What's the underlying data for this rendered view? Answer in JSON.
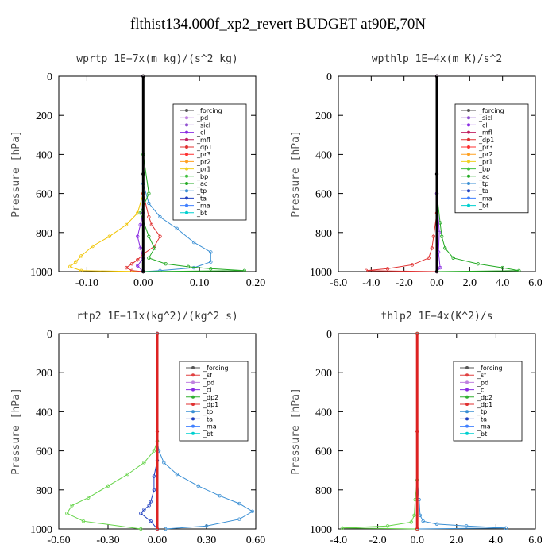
{
  "figure_title": "flthist134.000f_xp2_revert  BUDGET at90E,70N",
  "chart_data": [
    {
      "type": "line",
      "title": "wprtp  1E−7x(m kg)/(s^2 kg)",
      "ylabel": "Pressure [hPa]",
      "xlim": [
        -0.15,
        0.2
      ],
      "ylim": [
        1000,
        0
      ],
      "x_ticks": [
        "-0.10",
        "0.00",
        "0.10",
        "0.20"
      ],
      "x_tick_values": [
        -0.1,
        0.0,
        0.1,
        0.2
      ],
      "y_ticks": [
        "0",
        "200",
        "400",
        "600",
        "800",
        "1000"
      ],
      "y_tick_values": [
        0,
        200,
        400,
        600,
        800,
        1000
      ],
      "legend": [
        "_forcing",
        "_pd",
        "_sicl",
        "_cl",
        "_mfl",
        "_dp1",
        "_pr3",
        "_pr2",
        "_pr1",
        "_bp",
        "_ac",
        "_tp",
        "_ta",
        "_ma",
        "_bt"
      ],
      "series": [
        {
          "name": "_tp",
          "color": "#3a8fd4",
          "x": [
            0,
            0,
            0.01,
            0.03,
            0.06,
            0.09,
            0.12,
            0.12,
            0.09,
            0.03,
            0
          ],
          "y": [
            0,
            550,
            650,
            720,
            780,
            850,
            900,
            950,
            980,
            995,
            1000
          ]
        },
        {
          "name": "_pr2",
          "color": "#f0c400",
          "x": [
            0,
            0,
            -0.01,
            -0.03,
            -0.06,
            -0.09,
            -0.11,
            -0.12,
            -0.13,
            -0.11,
            0
          ],
          "y": [
            0,
            600,
            700,
            760,
            820,
            870,
            920,
            950,
            975,
            995,
            1000
          ]
        },
        {
          "name": "_dp1",
          "color": "#e03030",
          "x": [
            0,
            0,
            0.01,
            0.015,
            0.03,
            0.02,
            0.0,
            -0.01,
            -0.02,
            -0.03,
            -0.02,
            0
          ],
          "y": [
            0,
            600,
            720,
            760,
            820,
            870,
            910,
            940,
            960,
            980,
            995,
            1000
          ]
        },
        {
          "name": "_ac",
          "color": "#22aa22",
          "x": [
            0,
            0,
            0.01,
            -0.005,
            0.01,
            0.02,
            0.01,
            0.04,
            0.08,
            0.12,
            0.18,
            0
          ],
          "y": [
            0,
            400,
            600,
            700,
            820,
            880,
            930,
            960,
            975,
            985,
            995,
            1000
          ]
        },
        {
          "name": "_cl",
          "color": "#8a2be2",
          "x": [
            0,
            0,
            -0.005,
            -0.01,
            -0.005,
            0.0,
            -0.01,
            0
          ],
          "y": [
            0,
            700,
            760,
            820,
            880,
            930,
            970,
            1000
          ]
        },
        {
          "name": "_forcing",
          "color": "#000000",
          "x": [
            0,
            0,
            0
          ],
          "y": [
            0,
            500,
            1000
          ]
        }
      ]
    },
    {
      "type": "line",
      "title": "wpthlp  1E−4x(m K)/s^2",
      "ylabel": "Pressure [hPa]",
      "xlim": [
        -6.0,
        6.0
      ],
      "ylim": [
        1000,
        0
      ],
      "x_ticks": [
        "-6.0",
        "-4.0",
        "-2.0",
        "0.0",
        "2.0",
        "4.0",
        "6.0"
      ],
      "x_tick_values": [
        -6,
        -4,
        -2,
        0,
        2,
        4,
        6
      ],
      "y_ticks": [
        "0",
        "200",
        "400",
        "600",
        "800",
        "1000"
      ],
      "y_tick_values": [
        0,
        200,
        400,
        600,
        800,
        1000
      ],
      "legend": [
        "_forcing",
        "_sicl",
        "_cl",
        "_mfl",
        "_dp1",
        "_pr3",
        "_pr2",
        "_pr1",
        "_bp",
        "_ac",
        "_tp",
        "_ta",
        "_ma",
        "_bt"
      ],
      "series": [
        {
          "name": "_ac",
          "color": "#22aa22",
          "x": [
            0,
            0,
            0.2,
            0.3,
            0.5,
            1.0,
            2.5,
            4.0,
            5.0,
            0
          ],
          "y": [
            0,
            600,
            750,
            820,
            880,
            930,
            960,
            980,
            995,
            1000
          ]
        },
        {
          "name": "_dp1",
          "color": "#e03030",
          "x": [
            0,
            0,
            -0.2,
            -0.3,
            -0.5,
            -1.5,
            -3.0,
            -4.3,
            0
          ],
          "y": [
            0,
            700,
            820,
            880,
            930,
            965,
            985,
            995,
            1000
          ]
        },
        {
          "name": "_bp",
          "color": "#8a2be2",
          "x": [
            0,
            0,
            0.15,
            0.1,
            0.2,
            0
          ],
          "y": [
            0,
            600,
            800,
            900,
            980,
            1000
          ]
        },
        {
          "name": "_forcing",
          "color": "#000000",
          "x": [
            0,
            0,
            0
          ],
          "y": [
            0,
            500,
            1000
          ]
        }
      ]
    },
    {
      "type": "line",
      "title": "rtp2  1E−11x(kg^2)/(kg^2 s)",
      "ylabel": "Pressure [hPa]",
      "xlim": [
        -0.6,
        0.6
      ],
      "ylim": [
        1000,
        0
      ],
      "x_ticks": [
        "-0.60",
        "-0.30",
        "0.00",
        "0.30",
        "0.60"
      ],
      "x_tick_values": [
        -0.6,
        -0.3,
        0.0,
        0.3,
        0.6
      ],
      "y_ticks": [
        "0",
        "200",
        "400",
        "600",
        "800",
        "1000"
      ],
      "y_tick_values": [
        0,
        200,
        400,
        600,
        800,
        1000
      ],
      "legend": [
        "_forcing",
        "_sf",
        "_pd",
        "_cl",
        "_dp2",
        "_dp1",
        "_tp",
        "_ta",
        "_ma",
        "_bt"
      ],
      "series": [
        {
          "name": "_tp",
          "color": "#3a8fd4",
          "x": [
            0,
            0,
            0.01,
            0.04,
            0.12,
            0.25,
            0.38,
            0.5,
            0.58,
            0.5,
            0.3,
            0.05
          ],
          "y": [
            0,
            550,
            600,
            660,
            720,
            780,
            830,
            870,
            910,
            950,
            985,
            1000
          ]
        },
        {
          "name": "_dp1",
          "color": "#66d44a",
          "x": [
            0,
            0,
            -0.02,
            -0.08,
            -0.18,
            -0.3,
            -0.42,
            -0.52,
            -0.55,
            -0.45,
            -0.1
          ],
          "y": [
            0,
            550,
            600,
            660,
            720,
            780,
            840,
            880,
            920,
            960,
            1000
          ]
        },
        {
          "name": "_ta",
          "color": "#2040c0",
          "x": [
            0,
            0,
            -0.02,
            -0.02,
            -0.04,
            -0.05,
            -0.08,
            -0.1,
            -0.04,
            0
          ],
          "y": [
            0,
            650,
            730,
            800,
            860,
            880,
            900,
            920,
            960,
            1000
          ]
        },
        {
          "name": "_forcing",
          "color": "#dd2222",
          "x": [
            0,
            0,
            0
          ],
          "y": [
            0,
            500,
            1000
          ]
        }
      ]
    },
    {
      "type": "line",
      "title": "thlp2  1E−4x(K^2)/s",
      "ylabel": "Pressure [hPa]",
      "xlim": [
        -4.0,
        6.0
      ],
      "ylim": [
        1000,
        0
      ],
      "x_ticks": [
        "-4.0",
        "-2.0",
        "0.0",
        "2.0",
        "4.0",
        "6.0"
      ],
      "x_tick_values": [
        -4,
        -2,
        0,
        2,
        4,
        6
      ],
      "y_ticks": [
        "0",
        "200",
        "400",
        "600",
        "800",
        "1000"
      ],
      "y_tick_values": [
        0,
        200,
        400,
        600,
        800,
        1000
      ],
      "legend": [
        "_forcing",
        "_sf",
        "_pd",
        "_cl",
        "_dp2",
        "_dp1",
        "_tp",
        "_ta",
        "_ma",
        "_bt"
      ],
      "series": [
        {
          "name": "_tp",
          "color": "#3a8fd4",
          "x": [
            0,
            0,
            0.1,
            0.15,
            0.3,
            1.0,
            2.5,
            4.5,
            0
          ],
          "y": [
            0,
            750,
            850,
            930,
            960,
            975,
            985,
            995,
            1000
          ]
        },
        {
          "name": "_dp1",
          "color": "#66d44a",
          "x": [
            0,
            0,
            -0.1,
            -0.15,
            -0.3,
            -1.5,
            -3.8,
            0
          ],
          "y": [
            0,
            750,
            850,
            930,
            965,
            985,
            995,
            1000
          ]
        },
        {
          "name": "_forcing",
          "color": "#dd2222",
          "x": [
            0,
            0,
            0
          ],
          "y": [
            0,
            500,
            1000
          ]
        }
      ]
    }
  ]
}
